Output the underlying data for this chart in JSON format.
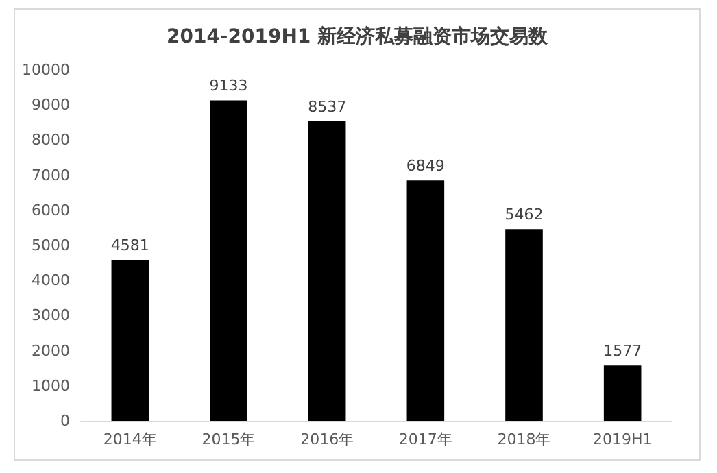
{
  "chart_data": {
    "type": "bar",
    "title": "2014-2019H1 新经济私募融资市场交易数",
    "categories": [
      "2014年",
      "2015年",
      "2016年",
      "2017年",
      "2018年",
      "2019H1"
    ],
    "values": [
      4581,
      9133,
      8537,
      6849,
      5462,
      1577
    ],
    "color": "#000000",
    "ylim": [
      0,
      10000
    ],
    "yticks": [
      0,
      1000,
      2000,
      3000,
      4000,
      5000,
      6000,
      7000,
      8000,
      9000,
      10000
    ],
    "grid": false,
    "data_labels": true
  }
}
